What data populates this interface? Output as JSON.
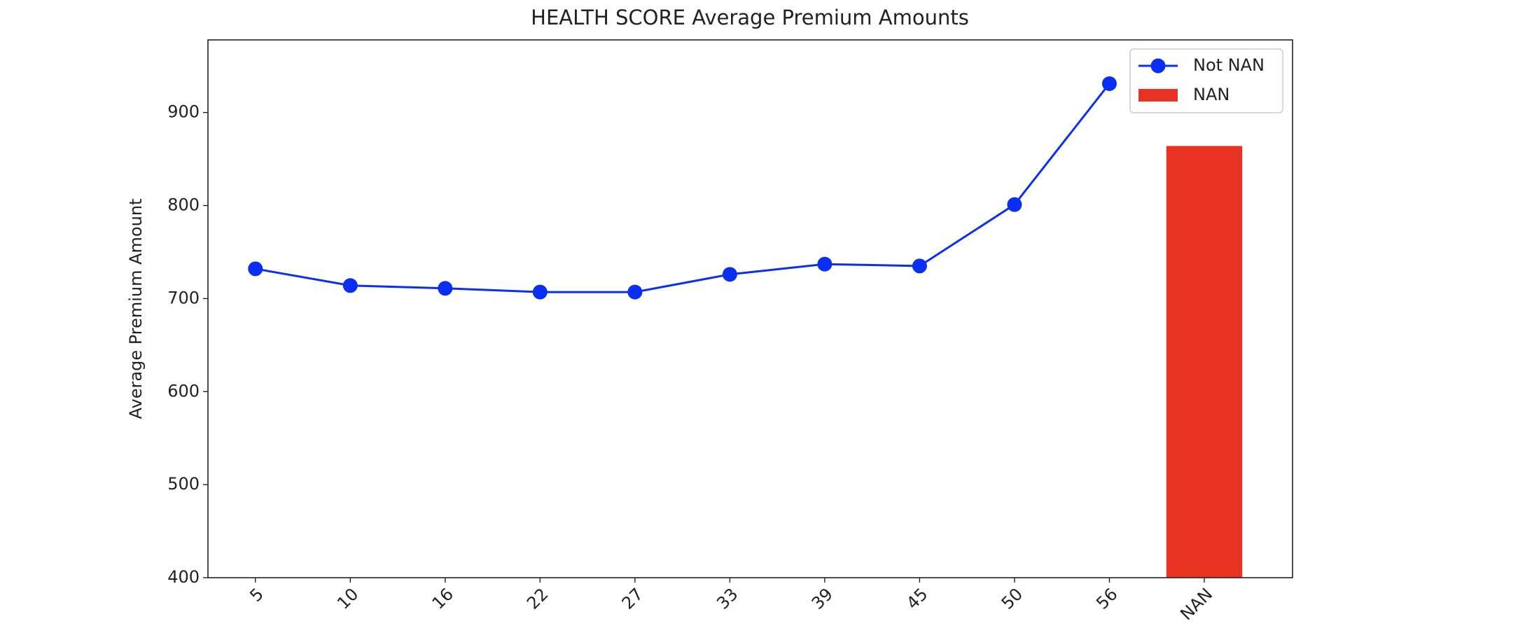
{
  "chart_data": {
    "type": "line",
    "title": "HEALTH SCORE Average Premium Amounts",
    "y_label": "Average Premium Amount",
    "categories": [
      "5",
      "10",
      "16",
      "22",
      "27",
      "33",
      "39",
      "45",
      "50",
      "56",
      "NAN"
    ],
    "series": [
      {
        "name": "Not NAN",
        "type": "line",
        "color": "#0b2ff2",
        "values": [
          732,
          714,
          711,
          707,
          707,
          726,
          737,
          735,
          801,
          931,
          null
        ]
      },
      {
        "name": "NAN",
        "type": "bar",
        "color": "#e83323",
        "values": [
          null,
          null,
          null,
          null,
          null,
          null,
          null,
          null,
          null,
          null,
          864
        ]
      }
    ],
    "ylim": [
      400,
      978
    ],
    "yticks": [
      400,
      500,
      600,
      700,
      800,
      900
    ],
    "legend": "upper right",
    "grid": false
  }
}
